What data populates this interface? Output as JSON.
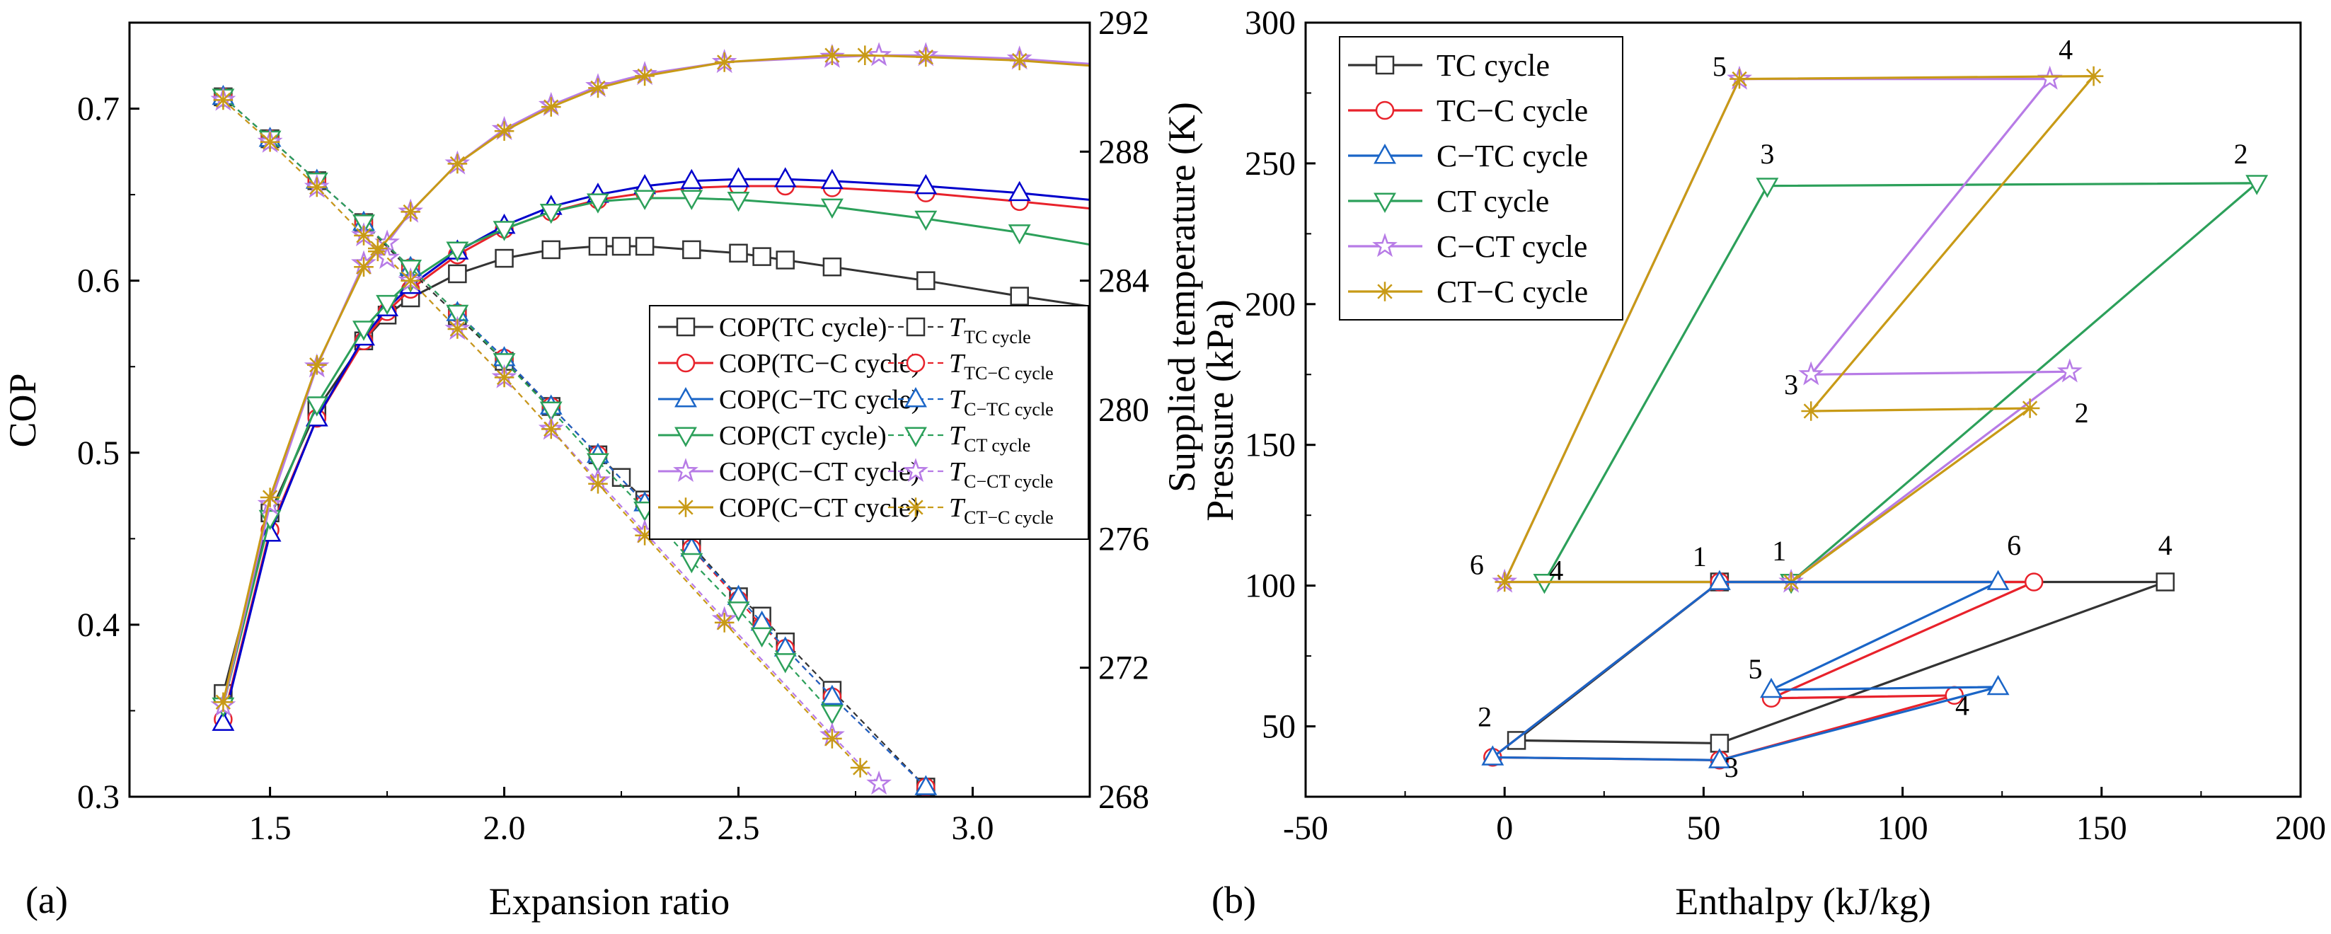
{
  "colors": {
    "TC": "#333333",
    "TC-C": "#e8222b",
    "C-TC": "#1a65c7",
    "CT": "#2ca05a",
    "C-CT": "#b77be6",
    "CT-C": "#c89a16",
    "C-TC_left_cop": "#0000cc"
  },
  "panel_labels": {
    "a": "(a)",
    "b": "(b)"
  },
  "chart_data": [
    {
      "id": "a",
      "type": "line",
      "title": "",
      "xlabel": "Expansion ratio",
      "ylabel": "COP",
      "y2label": "Supplied temperature (K)",
      "xlim": [
        1.2,
        3.25
      ],
      "ylim": [
        0.3,
        0.75
      ],
      "y2lim": [
        268,
        292
      ],
      "xticks": [
        "1.5",
        "2.0",
        "2.5",
        "3.0"
      ],
      "xtick_values": [
        1.5,
        2.0,
        2.5,
        3.0
      ],
      "yticks": [
        "0.3",
        "0.4",
        "0.5",
        "0.6",
        "0.7"
      ],
      "ytick_values": [
        0.3,
        0.4,
        0.5,
        0.6,
        0.7
      ],
      "y2ticks": [
        "268",
        "272",
        "276",
        "280",
        "284",
        "288",
        "292"
      ],
      "y2tick_values": [
        268,
        272,
        276,
        280,
        284,
        288,
        292
      ],
      "legend_position": "center-right",
      "series": [
        {
          "key": "TC",
          "name": "COP(TC cycle)",
          "axis": "left",
          "marker": "square",
          "style": "solid",
          "x": [
            1.4,
            1.5,
            1.6,
            1.7,
            1.75,
            1.8,
            1.9,
            2.0,
            2.1,
            2.2,
            2.25,
            2.3,
            2.4,
            2.5,
            2.55,
            2.6,
            2.7,
            2.9,
            3.1,
            3.25
          ],
          "y": [
            0.36,
            0.465,
            0.525,
            0.565,
            0.58,
            0.59,
            0.604,
            0.613,
            0.618,
            0.62,
            0.62,
            0.62,
            0.618,
            0.616,
            0.614,
            0.612,
            0.608,
            0.6,
            0.591,
            0.585
          ]
        },
        {
          "key": "TC-C",
          "name": "COP(TC−C cycle)",
          "axis": "left",
          "marker": "circle",
          "style": "solid",
          "x": [
            1.4,
            1.5,
            1.6,
            1.7,
            1.75,
            1.8,
            1.9,
            2.0,
            2.1,
            2.2,
            2.3,
            2.4,
            2.5,
            2.6,
            2.7,
            2.9,
            3.1,
            3.25
          ],
          "y": [
            0.345,
            0.455,
            0.52,
            0.565,
            0.582,
            0.595,
            0.615,
            0.63,
            0.64,
            0.647,
            0.651,
            0.654,
            0.655,
            0.655,
            0.654,
            0.651,
            0.646,
            0.642
          ]
        },
        {
          "key": "C-TC",
          "name": "COP(C−TC cycle)",
          "axis": "left",
          "marker": "triangle-up",
          "style": "solid",
          "x": [
            1.4,
            1.5,
            1.6,
            1.7,
            1.75,
            1.8,
            1.9,
            2.0,
            2.1,
            2.2,
            2.3,
            2.4,
            2.5,
            2.6,
            2.7,
            2.9,
            3.1,
            3.25
          ],
          "y": [
            0.343,
            0.453,
            0.52,
            0.567,
            0.584,
            0.597,
            0.617,
            0.632,
            0.643,
            0.65,
            0.655,
            0.658,
            0.659,
            0.659,
            0.658,
            0.655,
            0.651,
            0.647
          ]
        },
        {
          "key": "CT",
          "name": "COP(CT cycle)",
          "axis": "left",
          "marker": "triangle-down",
          "style": "solid",
          "x": [
            1.4,
            1.5,
            1.6,
            1.7,
            1.75,
            1.8,
            1.9,
            2.0,
            2.1,
            2.2,
            2.3,
            2.4,
            2.5,
            2.7,
            2.9,
            3.1,
            3.25
          ],
          "y": [
            0.353,
            0.462,
            0.528,
            0.572,
            0.587,
            0.6,
            0.618,
            0.63,
            0.64,
            0.646,
            0.648,
            0.648,
            0.647,
            0.643,
            0.636,
            0.628,
            0.621
          ]
        },
        {
          "key": "C-CT",
          "name": "COP(C−CT cycle)",
          "axis": "left",
          "marker": "star",
          "style": "solid",
          "x": [
            1.4,
            1.5,
            1.6,
            1.7,
            1.75,
            1.8,
            1.9,
            2.0,
            2.1,
            2.2,
            2.3,
            2.47,
            2.7,
            2.8,
            2.9,
            3.1,
            3.25
          ],
          "y": [
            0.353,
            0.47,
            0.55,
            0.61,
            0.622,
            0.64,
            0.668,
            0.688,
            0.702,
            0.713,
            0.72,
            0.727,
            0.73,
            0.731,
            0.731,
            0.729,
            0.726
          ]
        },
        {
          "key": "CT-C",
          "name": "COP(C−CT cycle)",
          "axis": "left",
          "marker": "asterisk",
          "style": "solid",
          "x": [
            1.4,
            1.5,
            1.6,
            1.7,
            1.73,
            1.8,
            1.9,
            2.0,
            2.1,
            2.2,
            2.3,
            2.47,
            2.7,
            2.77,
            2.9,
            3.1,
            3.25
          ],
          "y": [
            0.355,
            0.474,
            0.551,
            0.608,
            0.617,
            0.64,
            0.668,
            0.687,
            0.701,
            0.712,
            0.719,
            0.727,
            0.731,
            0.731,
            0.73,
            0.728,
            0.725
          ]
        },
        {
          "key": "TC",
          "name": "T",
          "sub": "TC cycle",
          "axis": "right",
          "marker": "square",
          "style": "dashed",
          "x": [
            1.4,
            1.5,
            1.6,
            1.7,
            1.8,
            1.9,
            2.0,
            2.1,
            2.2,
            2.25,
            2.3,
            2.4,
            2.5,
            2.55,
            2.6,
            2.7,
            2.9
          ],
          "y": [
            289.7,
            288.4,
            287.1,
            285.8,
            284.3,
            282.9,
            281.5,
            280.1,
            278.6,
            277.9,
            277.2,
            275.8,
            274.2,
            273.6,
            272.8,
            271.3,
            268.3
          ]
        },
        {
          "key": "TC-C",
          "name": "T",
          "sub": "TC−C cycle",
          "axis": "right",
          "marker": "circle",
          "style": "dashed",
          "x": [
            1.4,
            1.5,
            1.6,
            1.7,
            1.8,
            1.9,
            2.0,
            2.1,
            2.2,
            2.3,
            2.4,
            2.5,
            2.55,
            2.6,
            2.7,
            2.9
          ],
          "y": [
            289.7,
            288.4,
            287.1,
            285.8,
            284.4,
            283.0,
            281.6,
            280.1,
            278.6,
            277.1,
            275.7,
            274.1,
            273.3,
            272.6,
            271.1,
            268.3
          ]
        },
        {
          "key": "C-TC",
          "name": "T",
          "sub": "C−TC cycle",
          "axis": "right",
          "marker": "triangle-up",
          "style": "dashed",
          "x": [
            1.4,
            1.5,
            1.6,
            1.7,
            1.8,
            1.9,
            2.0,
            2.1,
            2.2,
            2.3,
            2.4,
            2.5,
            2.55,
            2.6,
            2.7,
            2.9
          ],
          "y": [
            289.7,
            288.4,
            287.1,
            285.8,
            284.4,
            283.0,
            281.6,
            280.1,
            278.6,
            277.1,
            275.7,
            274.2,
            273.4,
            272.6,
            271.1,
            268.3
          ]
        },
        {
          "key": "CT",
          "name": "T",
          "sub": "CT cycle",
          "axis": "right",
          "marker": "triangle-down",
          "style": "dashed",
          "x": [
            1.4,
            1.5,
            1.6,
            1.7,
            1.8,
            1.9,
            2.0,
            2.1,
            2.2,
            2.3,
            2.4,
            2.5,
            2.55,
            2.6,
            2.7
          ],
          "y": [
            289.7,
            288.4,
            287.1,
            285.8,
            284.4,
            283.0,
            281.5,
            280.0,
            278.4,
            276.9,
            275.3,
            273.8,
            273.0,
            272.2,
            270.6
          ]
        },
        {
          "key": "C-CT",
          "name": "T",
          "sub": "C−CT cycle",
          "axis": "right",
          "marker": "star",
          "style": "dashed",
          "x": [
            1.4,
            1.5,
            1.6,
            1.7,
            1.75,
            1.8,
            1.9,
            2.0,
            2.1,
            2.2,
            2.3,
            2.47,
            2.7,
            2.8
          ],
          "y": [
            289.6,
            288.3,
            286.9,
            285.4,
            284.7,
            284.0,
            282.5,
            281.0,
            279.4,
            277.8,
            276.2,
            273.5,
            269.9,
            268.4
          ]
        },
        {
          "key": "CT-C",
          "name": "T",
          "sub": "CT−C cycle",
          "axis": "right",
          "marker": "asterisk",
          "style": "dashed",
          "x": [
            1.4,
            1.5,
            1.6,
            1.7,
            1.73,
            1.8,
            1.9,
            2.0,
            2.1,
            2.2,
            2.3,
            2.47,
            2.7,
            2.76
          ],
          "y": [
            289.6,
            288.3,
            286.9,
            285.4,
            285.0,
            284.0,
            282.5,
            281.0,
            279.4,
            277.7,
            276.1,
            273.4,
            269.8,
            268.9
          ]
        }
      ],
      "legend": [
        {
          "key": "TC",
          "label": "COP(TC cycle)",
          "style": "solid",
          "marker": "square"
        },
        {
          "key": "TC",
          "label": "T",
          "sub": "TC cycle",
          "style": "dashed",
          "marker": "square"
        },
        {
          "key": "TC-C",
          "label": "COP(TC−C cycle)",
          "style": "solid",
          "marker": "circle"
        },
        {
          "key": "TC-C",
          "label": "T",
          "sub": "TC−C cycle",
          "style": "dashed",
          "marker": "circle"
        },
        {
          "key": "C-TC",
          "label": "COP(C−TC cycle)",
          "style": "solid",
          "marker": "triangle-up"
        },
        {
          "key": "C-TC",
          "label": "T",
          "sub": "C−TC cycle",
          "style": "dashed",
          "marker": "triangle-up"
        },
        {
          "key": "CT",
          "label": "COP(CT cycle)",
          "style": "solid",
          "marker": "triangle-down"
        },
        {
          "key": "CT",
          "label": "T",
          "sub": "CT cycle",
          "style": "dashed",
          "marker": "triangle-down"
        },
        {
          "key": "C-CT",
          "label": "COP(C−CT cycle)",
          "style": "solid",
          "marker": "star"
        },
        {
          "key": "C-CT",
          "label": "T",
          "sub": "C−CT cycle",
          "style": "dashed",
          "marker": "star"
        },
        {
          "key": "CT-C",
          "label": "COP(C−CT cycle)",
          "style": "solid",
          "marker": "asterisk"
        },
        {
          "key": "CT-C",
          "label": "T",
          "sub": "CT−C cycle",
          "style": "dashed",
          "marker": "asterisk"
        }
      ]
    },
    {
      "id": "b",
      "type": "line",
      "title": "",
      "xlabel": "Enthalpy (kJ/kg)",
      "ylabel": "Pressure (kPa)",
      "xlim": [
        -50,
        200
      ],
      "ylim": [
        25,
        300
      ],
      "xticks": [
        "-50",
        "0",
        "50",
        "100",
        "150",
        "200"
      ],
      "xtick_values": [
        -50,
        0,
        50,
        100,
        150,
        200
      ],
      "yticks": [
        "50",
        "100",
        "150",
        "200",
        "250",
        "300"
      ],
      "ytick_values": [
        50,
        100,
        150,
        200,
        250,
        300
      ],
      "legend_position": "top-left",
      "series": [
        {
          "key": "TC",
          "name": "TC cycle",
          "marker": "square",
          "h": [
            54,
            3,
            54,
            166,
            54
          ],
          "p": [
            101.3,
            45,
            44,
            101.3,
            101.3
          ],
          "marker_points": [
            0,
            1,
            2,
            3
          ]
        },
        {
          "key": "TC-C",
          "name": "TC−C cycle",
          "marker": "circle",
          "h": [
            54,
            -3,
            54,
            113,
            67,
            133,
            54
          ],
          "p": [
            101.3,
            39,
            38,
            61,
            60,
            101.3,
            101.3
          ],
          "marker_points": [
            0,
            1,
            2,
            3,
            4,
            5
          ]
        },
        {
          "key": "C-TC",
          "name": "C−TC cycle",
          "marker": "triangle-up",
          "h": [
            54,
            -3,
            54,
            124,
            67,
            124,
            54
          ],
          "p": [
            101.3,
            39,
            38,
            64,
            63,
            101.3,
            101.3
          ],
          "marker_points": [
            0,
            1,
            2,
            3,
            4,
            5
          ]
        },
        {
          "key": "CT",
          "name": "CT cycle",
          "marker": "triangle-down",
          "h": [
            72,
            189,
            66,
            10,
            72
          ],
          "p": [
            101.3,
            243,
            242,
            101.3,
            101.3
          ],
          "marker_points": [
            0,
            1,
            2,
            3
          ]
        },
        {
          "key": "C-CT",
          "name": "C−CT cycle",
          "marker": "star",
          "h": [
            72,
            142,
            77,
            137,
            59,
            0,
            72
          ],
          "p": [
            101.3,
            176,
            175,
            280,
            280,
            101.3,
            101.3
          ],
          "marker_points": [
            0,
            1,
            2,
            3,
            4,
            5
          ]
        },
        {
          "key": "CT-C",
          "name": "CT−C cycle",
          "marker": "asterisk",
          "h": [
            72,
            132,
            77,
            148,
            59,
            0,
            72
          ],
          "p": [
            101.3,
            163,
            162,
            281,
            280,
            101.3,
            101.3
          ],
          "marker_points": [
            0,
            1,
            2,
            3,
            4,
            5
          ]
        }
      ],
      "point_labels": [
        {
          "text": "1",
          "h": 49,
          "p": 107
        },
        {
          "text": "2",
          "h": -5,
          "p": 50
        },
        {
          "text": "3",
          "h": 57,
          "p": 32
        },
        {
          "text": "4",
          "h": 115,
          "p": 54
        },
        {
          "text": "5",
          "h": 63,
          "p": 67
        },
        {
          "text": "6",
          "h": 128,
          "p": 111
        },
        {
          "text": "4",
          "h": 166,
          "p": 111
        },
        {
          "text": "1",
          "h": 69,
          "p": 109
        },
        {
          "text": "2",
          "h": 185,
          "p": 250
        },
        {
          "text": "3",
          "h": 66,
          "p": 250
        },
        {
          "text": "4",
          "h": 13,
          "p": 102
        },
        {
          "text": "6",
          "h": -7,
          "p": 104
        },
        {
          "text": "5",
          "h": 54,
          "p": 281
        },
        {
          "text": "4",
          "h": 141,
          "p": 287
        },
        {
          "text": "2",
          "h": 145,
          "p": 158
        },
        {
          "text": "3",
          "h": 72,
          "p": 168
        }
      ]
    }
  ]
}
